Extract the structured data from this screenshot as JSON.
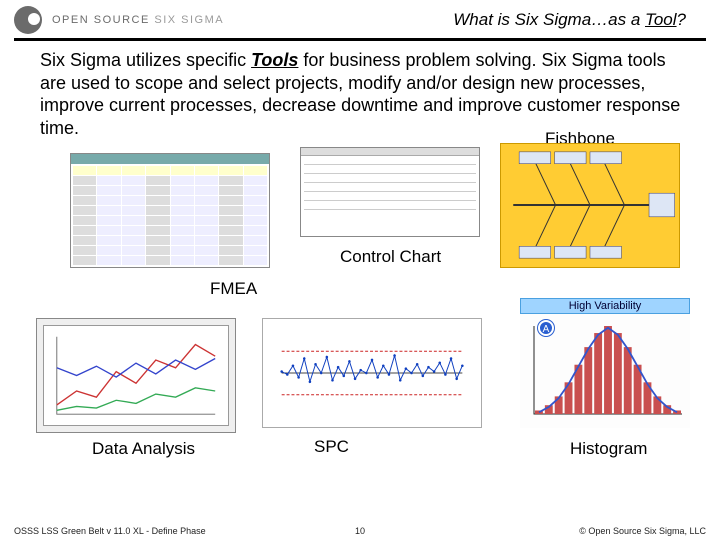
{
  "brand": {
    "open_source": "OPEN SOURCE",
    "six_sigma": "SIX SIGMA"
  },
  "slide_title": {
    "prefix": "What is Six Sigma…as a ",
    "underlined": "Tool",
    "suffix": "?"
  },
  "body": {
    "pre": "Six Sigma utilizes specific ",
    "tools_word": "Tools",
    "post": " for business problem solving. Six Sigma tools are used to scope and select projects, modify and/or design new processes, improve current processes, decrease downtime and improve customer response time."
  },
  "labels": {
    "fishbone": "Fishbone",
    "control_chart": "Control Chart",
    "fmea": "FMEA",
    "spc": "SPC",
    "data_analysis": "Data Analysis",
    "histogram": "Histogram",
    "high_variability": "High Variability",
    "badge_a": "A"
  },
  "thumbs": {
    "fmea": {
      "type": "table",
      "header_color": "#77aaaa",
      "cell_colors": [
        "#eeeeff",
        "#ffffcc",
        "#dddddd"
      ]
    },
    "control_chart": {
      "type": "form-table",
      "rows": 6
    },
    "fishbone": {
      "type": "fishbone",
      "background_color": "#ffcc33",
      "box_fill": "#dde6f5",
      "spine_color": "#333333"
    },
    "data_analysis": {
      "type": "line-multi",
      "series": [
        {
          "color": "#cc3333",
          "points": [
            12,
            30,
            22,
            55,
            40,
            70,
            60,
            90,
            75
          ]
        },
        {
          "color": "#3344cc",
          "points": [
            60,
            50,
            62,
            48,
            66,
            52,
            70,
            58,
            72
          ]
        },
        {
          "color": "#33aa55",
          "points": [
            5,
            10,
            8,
            18,
            14,
            26,
            22,
            34,
            30
          ]
        }
      ],
      "bg": "#ffffff"
    },
    "spc": {
      "type": "control-chart",
      "mean": 50,
      "ucl": 80,
      "lcl": 20,
      "line_color": "#1040c0",
      "bound_color": "#cc2222",
      "points": [
        52,
        48,
        60,
        44,
        70,
        38,
        62,
        50,
        72,
        40,
        58,
        46,
        66,
        42,
        54,
        50,
        68,
        44,
        60,
        48,
        74,
        40,
        56,
        50,
        62,
        46,
        58,
        52,
        64,
        48,
        70,
        42,
        60
      ]
    },
    "histogram": {
      "type": "histogram+curve",
      "bar_color": "#c94f4f",
      "curve_color": "#3355cc",
      "axis_color": "#222222",
      "bars": [
        2,
        5,
        10,
        18,
        28,
        38,
        46,
        50,
        46,
        38,
        28,
        18,
        10,
        5,
        2
      ],
      "curve": [
        1,
        4,
        9,
        17,
        27,
        37,
        45,
        49,
        45,
        37,
        27,
        17,
        9,
        4,
        1
      ]
    }
  },
  "footer": {
    "left": "OSSS LSS Green Belt v 11.0 XL - Define Phase",
    "page": "10",
    "right": "© Open Source Six Sigma, LLC"
  }
}
